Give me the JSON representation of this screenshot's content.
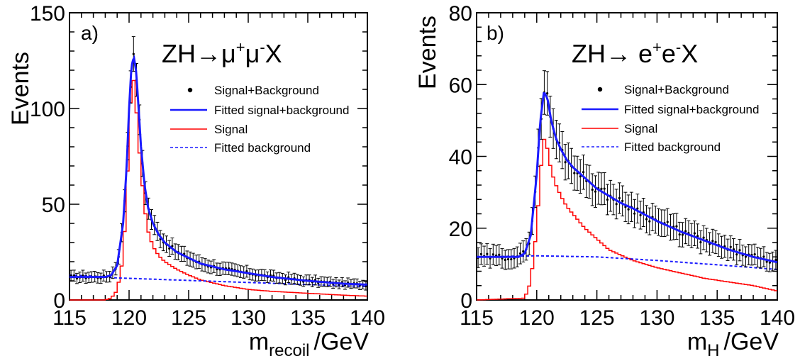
{
  "chart_data": [
    {
      "type": "line",
      "panel_label": "a)",
      "process": {
        "base": "ZH→μ",
        "mu_plus": "+",
        "mu_mid": "μ",
        "mu_minus": "-",
        "tail": "X"
      },
      "xlabel": {
        "base": "m",
        "sub": "recoil",
        "unit": "/GeV"
      },
      "ylabel": "Events",
      "xlim": [
        115,
        140
      ],
      "ylim": [
        0,
        150
      ],
      "xticks": [
        115,
        120,
        125,
        130,
        135,
        140
      ],
      "yticks": [
        0,
        50,
        100,
        150
      ],
      "legend": [
        "Signal+Background",
        "Fitted signal+background",
        "Signal",
        "Fitted background"
      ],
      "legend_position": "top-right",
      "colors": {
        "data": "#000000",
        "fit": "#1a1aff",
        "signal": "#ff0000",
        "background": "#1a1aff"
      },
      "background": {
        "x": [
          115,
          117,
          119,
          140
        ],
        "y": [
          13,
          12.5,
          11.5,
          7
        ]
      },
      "signal_and_background": {
        "x": [
          115,
          118,
          118.5,
          119,
          119.5,
          119.8,
          120,
          120.2,
          120.4,
          120.6,
          120.8,
          121,
          121.3,
          121.6,
          122,
          122.5,
          123,
          124,
          125,
          126,
          128,
          130,
          132,
          135,
          138,
          140
        ],
        "y": [
          12,
          12,
          13,
          18,
          40,
          70,
          100,
          122,
          127,
          119,
          100,
          80,
          60,
          48,
          40,
          34,
          30,
          25,
          22,
          19,
          16,
          14,
          12,
          10,
          8.5,
          8
        ]
      },
      "signal": {
        "x": [
          115,
          118,
          118.5,
          119,
          119.5,
          119.8,
          120,
          120.2,
          120.4,
          120.6,
          120.8,
          121,
          121.3,
          121.6,
          122,
          122.5,
          123,
          124,
          125,
          126,
          128,
          130,
          132,
          135,
          138,
          140
        ],
        "y": [
          0,
          0,
          1,
          5,
          22,
          55,
          88,
          112,
          115,
          100,
          82,
          68,
          48,
          36,
          28,
          23,
          20,
          16,
          13,
          10.5,
          7.5,
          5.5,
          4.5,
          3.5,
          2.5,
          2
        ]
      }
    },
    {
      "type": "line",
      "panel_label": "b)",
      "process": {
        "base": "ZH→ e",
        "e_plus": "+",
        "e_mid": "e",
        "e_minus": "-",
        "tail": "X"
      },
      "xlabel": {
        "base": "m",
        "sub": "H",
        "unit": "/GeV"
      },
      "ylabel": "Events",
      "xlim": [
        115,
        140
      ],
      "ylim": [
        0,
        80
      ],
      "xticks": [
        115,
        120,
        125,
        130,
        135,
        140
      ],
      "yticks": [
        0,
        20,
        40,
        60,
        80
      ],
      "legend": [
        "Signal+Background",
        "Fitted signal+background",
        "Signal",
        "Fitted background"
      ],
      "legend_position": "top-right",
      "colors": {
        "data": "#000000",
        "fit": "#1a1aff",
        "signal": "#ff0000",
        "background": "#1a1aff"
      },
      "background": {
        "x": [
          115,
          120,
          125,
          130,
          135,
          140
        ],
        "y": [
          12,
          12.3,
          12,
          11,
          9.8,
          8.5
        ]
      },
      "signal_and_background": {
        "x": [
          115,
          118.5,
          119,
          119.5,
          120,
          120.3,
          120.6,
          120.9,
          121.2,
          121.6,
          122,
          122.5,
          123,
          124,
          125,
          126,
          127,
          128,
          130,
          132,
          134,
          136,
          138,
          140
        ],
        "y": [
          12,
          12,
          13,
          18,
          35,
          50,
          58,
          56,
          50,
          45,
          42,
          39,
          37,
          34,
          31,
          29,
          27,
          25.5,
          22,
          19,
          16.5,
          14,
          12,
          10.5
        ]
      },
      "signal": {
        "x": [
          115,
          119,
          119.5,
          120,
          120.3,
          120.6,
          120.9,
          121.2,
          121.6,
          122,
          122.5,
          123,
          124,
          125,
          126,
          127,
          128,
          130,
          132,
          134,
          136,
          138,
          140
        ],
        "y": [
          0,
          0.5,
          5,
          20,
          35,
          45,
          42,
          36,
          32,
          29,
          26,
          24,
          20,
          17,
          14,
          12.5,
          11,
          9,
          7.5,
          6,
          5,
          4,
          2.5
        ]
      }
    }
  ]
}
